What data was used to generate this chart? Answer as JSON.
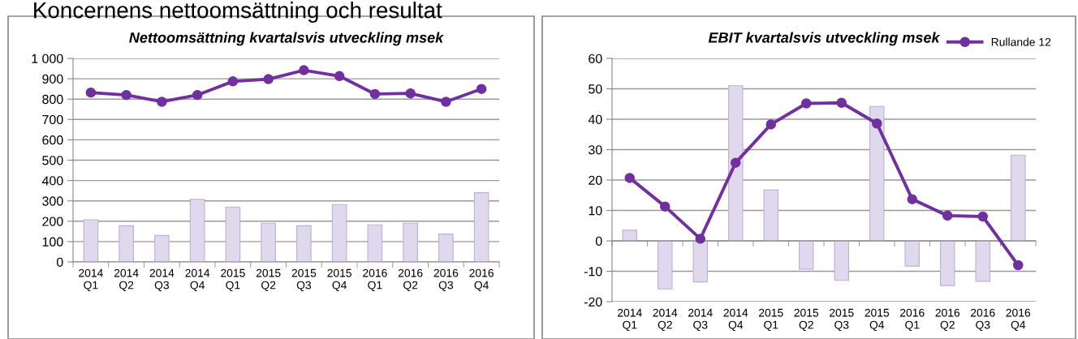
{
  "chart_data": [
    {
      "type": "bar",
      "title": "Nettoomsättning kvartalsvis utveckling msek",
      "annotations": [
        "Koncernens nettoomsättning och resultat"
      ],
      "categories": [
        "2014\nQ1",
        "2014\nQ2",
        "2014\nQ3",
        "2014\nQ4",
        "2015\nQ1",
        "2015\nQ2",
        "2015\nQ3",
        "2015\nQ4",
        "2016\nQ1",
        "2016\nQ2",
        "2016\nQ3",
        "2016\nQ4"
      ],
      "series": [
        {
          "color": "#e0d8ec",
          "values": [
            207,
            178,
            130,
            308,
            270,
            190,
            178,
            282,
            182,
            190,
            137,
            340
          ]
        },
        {
          "type": "line",
          "color": "#7030a0",
          "marker": "circle",
          "values": [
            832,
            820,
            787,
            820,
            887,
            898,
            942,
            913,
            825,
            828,
            787,
            850
          ]
        }
      ],
      "ylim": [
        0,
        1000
      ],
      "yticks": [
        0,
        100,
        200,
        300,
        400,
        500,
        600,
        700,
        800,
        900,
        {
          "value": 1000,
          "label": "1 000"
        }
      ],
      "grid": "y"
    },
    {
      "type": "bar",
      "title": "EBIT kvartalsvis utveckling msek",
      "categories": [
        "2014\nQ1",
        "2014\nQ2",
        "2014\nQ3",
        "2014\nQ4",
        "2015\nQ1",
        "2015\nQ2",
        "2015\nQ3",
        "2015\nQ4",
        "2016\nQ1",
        "2016\nQ2",
        "2016\nQ3",
        "2016\nQ4"
      ],
      "series": [
        {
          "color": "#e0d8ec",
          "values": [
            3.5,
            -15.8,
            -13.5,
            51,
            16.7,
            -9.3,
            -13,
            44.2,
            -8.3,
            -14.7,
            -13.3,
            28.2
          ]
        },
        {
          "type": "line",
          "name": "Rullande 12",
          "color": "#7030a0",
          "marker": "circle",
          "values": [
            20.7,
            11.3,
            0.7,
            25.7,
            38.3,
            45.2,
            45.4,
            38.6,
            13.7,
            8.3,
            8.0,
            -8
          ]
        }
      ],
      "ylim": [
        -20,
        60
      ],
      "yticks": [
        -20,
        -10,
        0,
        10,
        20,
        30,
        40,
        50,
        60
      ],
      "grid": "y",
      "legend": "top right"
    }
  ]
}
